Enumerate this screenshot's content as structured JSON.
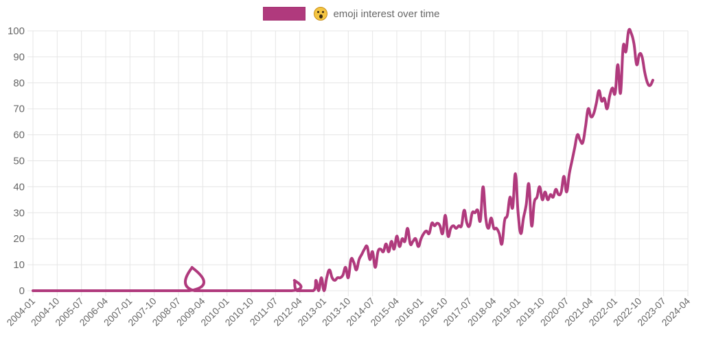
{
  "chart_data": {
    "type": "line",
    "title": "",
    "legend": [
      {
        "label": "emoji interest over time",
        "color": "#b03a7d",
        "icon": "astonished-face-emoji-icon"
      }
    ],
    "legend_position": "top",
    "xlabel": "",
    "ylabel": "",
    "ylim": [
      0,
      100
    ],
    "y_ticks": [
      0,
      10,
      20,
      30,
      40,
      50,
      60,
      70,
      80,
      90,
      100
    ],
    "x_tick_labels": [
      "2004-01",
      "2004-10",
      "2005-07",
      "2006-04",
      "2007-01",
      "2007-10",
      "2008-07",
      "2009-04",
      "2010-01",
      "2010-10",
      "2011-07",
      "2012-04",
      "2013-01",
      "2013-10",
      "2014-07",
      "2015-04",
      "2016-01",
      "2016-10",
      "2017-07",
      "2018-04",
      "2019-01",
      "2019-10",
      "2020-07",
      "2021-04",
      "2022-01",
      "2022-10",
      "2023-07",
      "2024-04"
    ],
    "grid": true,
    "x_start": "2004-01",
    "x_end": "2024-04",
    "series": [
      {
        "name": "emoji interest over time",
        "color": "#b03a7d",
        "points": [
          [
            "2004-01",
            0
          ],
          [
            "2008-11",
            0
          ],
          [
            "2008-12",
            9
          ],
          [
            "2009-01",
            0
          ],
          [
            "2012-01",
            0
          ],
          [
            "2012-02",
            4
          ],
          [
            "2012-03",
            0
          ],
          [
            "2012-09",
            0
          ],
          [
            "2012-10",
            4
          ],
          [
            "2012-11",
            0
          ],
          [
            "2012-12",
            5
          ],
          [
            "2013-01",
            0
          ],
          [
            "2013-02",
            5
          ],
          [
            "2013-03",
            8
          ],
          [
            "2013-04",
            5
          ],
          [
            "2013-05",
            4
          ],
          [
            "2013-06",
            5
          ],
          [
            "2013-07",
            5
          ],
          [
            "2013-08",
            6
          ],
          [
            "2013-09",
            9
          ],
          [
            "2013-10",
            5
          ],
          [
            "2013-11",
            12
          ],
          [
            "2013-12",
            11
          ],
          [
            "2014-01",
            8
          ],
          [
            "2014-02",
            12
          ],
          [
            "2014-03",
            14
          ],
          [
            "2014-04",
            16
          ],
          [
            "2014-05",
            17
          ],
          [
            "2014-06",
            12
          ],
          [
            "2014-07",
            15
          ],
          [
            "2014-08",
            9
          ],
          [
            "2014-09",
            15
          ],
          [
            "2014-10",
            16
          ],
          [
            "2014-11",
            15
          ],
          [
            "2014-12",
            18
          ],
          [
            "2015-01",
            15
          ],
          [
            "2015-02",
            19
          ],
          [
            "2015-03",
            16
          ],
          [
            "2015-04",
            21
          ],
          [
            "2015-05",
            17
          ],
          [
            "2015-06",
            20
          ],
          [
            "2015-07",
            19
          ],
          [
            "2015-08",
            24
          ],
          [
            "2015-09",
            18
          ],
          [
            "2015-10",
            19
          ],
          [
            "2015-11",
            20
          ],
          [
            "2015-12",
            17
          ],
          [
            "2016-01",
            20
          ],
          [
            "2016-02",
            22
          ],
          [
            "2016-03",
            23
          ],
          [
            "2016-04",
            22
          ],
          [
            "2016-05",
            26
          ],
          [
            "2016-06",
            25
          ],
          [
            "2016-07",
            26
          ],
          [
            "2016-08",
            25
          ],
          [
            "2016-09",
            22
          ],
          [
            "2016-10",
            29
          ],
          [
            "2016-11",
            21
          ],
          [
            "2016-12",
            24
          ],
          [
            "2017-01",
            25
          ],
          [
            "2017-02",
            24
          ],
          [
            "2017-03",
            25
          ],
          [
            "2017-04",
            25
          ],
          [
            "2017-05",
            31
          ],
          [
            "2017-06",
            26
          ],
          [
            "2017-07",
            25
          ],
          [
            "2017-08",
            30
          ],
          [
            "2017-09",
            30
          ],
          [
            "2017-10",
            31
          ],
          [
            "2017-11",
            27
          ],
          [
            "2017-12",
            40
          ],
          [
            "2018-01",
            28
          ],
          [
            "2018-02",
            24
          ],
          [
            "2018-03",
            28
          ],
          [
            "2018-04",
            24
          ],
          [
            "2018-05",
            24
          ],
          [
            "2018-06",
            22
          ],
          [
            "2018-07",
            18
          ],
          [
            "2018-08",
            27
          ],
          [
            "2018-09",
            29
          ],
          [
            "2018-10",
            36
          ],
          [
            "2018-11",
            32
          ],
          [
            "2018-12",
            45
          ],
          [
            "2019-01",
            30
          ],
          [
            "2019-02",
            22
          ],
          [
            "2019-03",
            28
          ],
          [
            "2019-04",
            33
          ],
          [
            "2019-05",
            41
          ],
          [
            "2019-06",
            25
          ],
          [
            "2019-07",
            34
          ],
          [
            "2019-08",
            36
          ],
          [
            "2019-09",
            40
          ],
          [
            "2019-10",
            35
          ],
          [
            "2019-11",
            38
          ],
          [
            "2019-12",
            35
          ],
          [
            "2020-01",
            37
          ],
          [
            "2020-02",
            36
          ],
          [
            "2020-03",
            39
          ],
          [
            "2020-04",
            37
          ],
          [
            "2020-05",
            38
          ],
          [
            "2020-06",
            44
          ],
          [
            "2020-07",
            38
          ],
          [
            "2020-08",
            45
          ],
          [
            "2020-09",
            50
          ],
          [
            "2020-10",
            55
          ],
          [
            "2020-11",
            60
          ],
          [
            "2020-12",
            58
          ],
          [
            "2021-01",
            57
          ],
          [
            "2021-02",
            63
          ],
          [
            "2021-03",
            70
          ],
          [
            "2021-04",
            67
          ],
          [
            "2021-05",
            68
          ],
          [
            "2021-06",
            72
          ],
          [
            "2021-07",
            77
          ],
          [
            "2021-08",
            73
          ],
          [
            "2021-09",
            74
          ],
          [
            "2021-10",
            70
          ],
          [
            "2021-11",
            75
          ],
          [
            "2021-12",
            78
          ],
          [
            "2022-01",
            76
          ],
          [
            "2022-02",
            87
          ],
          [
            "2022-03",
            76
          ],
          [
            "2022-04",
            94
          ],
          [
            "2022-05",
            92
          ],
          [
            "2022-06",
            100
          ],
          [
            "2022-07",
            99
          ],
          [
            "2022-08",
            95
          ],
          [
            "2022-09",
            87
          ],
          [
            "2022-10",
            91
          ],
          [
            "2022-11",
            90
          ],
          [
            "2022-12",
            84
          ],
          [
            "2023-01",
            80
          ],
          [
            "2023-02",
            79
          ],
          [
            "2023-03",
            81
          ]
        ]
      }
    ]
  }
}
